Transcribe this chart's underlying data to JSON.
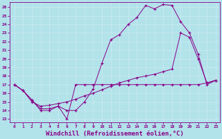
{
  "bg_color": "#b2e2ea",
  "line_color": "#880088",
  "grid_color": "#c8eaf0",
  "xlabel": "Windchill (Refroidissement éolien,°C)",
  "xlabel_fontsize": 6.5,
  "yticks": [
    13,
    14,
    15,
    16,
    17,
    18,
    19,
    20,
    21,
    22,
    23,
    24,
    25,
    26
  ],
  "xticks": [
    0,
    1,
    2,
    3,
    4,
    5,
    6,
    7,
    8,
    9,
    10,
    11,
    12,
    13,
    14,
    15,
    16,
    17,
    18,
    19,
    20,
    21,
    22,
    23
  ],
  "xlim": [
    -0.5,
    23.5
  ],
  "ylim": [
    12.6,
    26.6
  ],
  "curve1_x": [
    0,
    1,
    2,
    3,
    4,
    5,
    6,
    7,
    8,
    9,
    10,
    11,
    12,
    13,
    14,
    15,
    16,
    17,
    18,
    19,
    20,
    21,
    22,
    23
  ],
  "curve1_y": [
    17.0,
    16.3,
    15.2,
    14.0,
    14.0,
    14.5,
    13.0,
    17.0,
    17.0,
    17.0,
    17.0,
    17.0,
    17.0,
    17.0,
    17.0,
    17.0,
    17.0,
    17.0,
    17.0,
    17.0,
    17.0,
    17.0,
    17.2,
    17.5
  ],
  "curve2_x": [
    0,
    1,
    2,
    3,
    4,
    5,
    6,
    7,
    8,
    9,
    10,
    11,
    12,
    13,
    14,
    15,
    16,
    17,
    18,
    19,
    20,
    21,
    22,
    23
  ],
  "curve2_y": [
    17.0,
    16.3,
    15.2,
    14.2,
    14.2,
    14.5,
    14.0,
    14.0,
    15.0,
    16.5,
    19.5,
    22.2,
    22.8,
    24.0,
    24.8,
    26.2,
    25.8,
    26.3,
    26.2,
    24.3,
    23.0,
    20.5,
    17.0,
    17.5
  ],
  "curve3_x": [
    0,
    1,
    2,
    3,
    4,
    5,
    6,
    7,
    8,
    9,
    10,
    11,
    12,
    13,
    14,
    15,
    16,
    17,
    18,
    19,
    20,
    21,
    22,
    23
  ],
  "curve3_y": [
    17.0,
    16.3,
    15.0,
    14.5,
    14.6,
    14.8,
    15.0,
    15.3,
    15.7,
    16.0,
    16.4,
    16.8,
    17.2,
    17.5,
    17.8,
    18.0,
    18.2,
    18.5,
    18.8,
    23.0,
    22.5,
    20.0,
    17.2,
    17.5
  ]
}
